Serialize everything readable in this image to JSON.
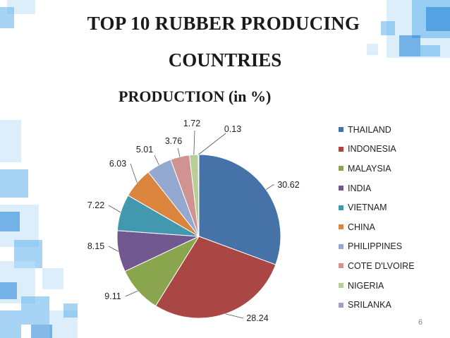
{
  "title_line1": "TOP 10 RUBBER PRODUCING",
  "title_line2": "COUNTRIES",
  "slide_number": "6",
  "colors": {
    "deco_dark": "#1f7fd6",
    "deco_mid": "#5fb0ec",
    "deco_light": "#bfe0f6"
  },
  "chart_data": {
    "type": "pie",
    "title": "PRODUCTION (in %)",
    "categories": [
      "THAILAND",
      "INDONESIA",
      "MALAYSIA",
      "INDIA",
      "VIETNAM",
      "CHINA",
      "PHILIPPINES",
      "COTE D'LVOIRE",
      "NIGERIA",
      "SRILANKA"
    ],
    "values": [
      30.62,
      28.24,
      9.11,
      8.15,
      7.22,
      6.03,
      5.01,
      3.76,
      1.72,
      0.13
    ],
    "value_labels": [
      "30.62",
      "28.24",
      "9.11",
      "8.15",
      "7.22",
      "6.03",
      "5.01",
      "3.76",
      "1.72",
      "0.13"
    ],
    "colors": [
      "#4572a7",
      "#aa4643",
      "#89a54e",
      "#71588f",
      "#4198af",
      "#db843d",
      "#93a9cf",
      "#d19392",
      "#b9cd96",
      "#a99bbd"
    ],
    "legend": "right"
  }
}
